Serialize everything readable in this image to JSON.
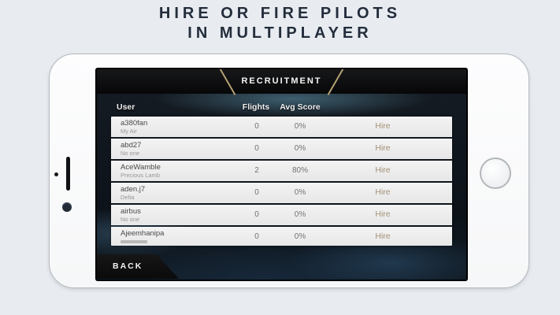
{
  "promo": {
    "title_line1": "HIRE OR FIRE PILOTS",
    "title_line2": "IN MULTIPLAYER",
    "title_color": "#232d3b",
    "background_color": "#e8ecf1"
  },
  "screen": {
    "header": {
      "title": "RECRUITMENT",
      "accent_color": "#b5a273"
    },
    "table": {
      "columns": [
        "User",
        "Flights",
        "Avg Score"
      ],
      "rows": [
        {
          "user": "a380fan",
          "sub": "My Air",
          "flights": "0",
          "avg": "0%",
          "action": "Hire"
        },
        {
          "user": "abd27",
          "sub": "No one",
          "flights": "0",
          "avg": "0%",
          "action": "Hire"
        },
        {
          "user": "AceWamble",
          "sub": "Precious Lamb",
          "flights": "2",
          "avg": "80%",
          "action": "Hire"
        },
        {
          "user": "aden.j7",
          "sub": "Delta",
          "flights": "0",
          "avg": "0%",
          "action": "Hire"
        },
        {
          "user": "airbus",
          "sub": "No one",
          "flights": "0",
          "avg": "0%",
          "action": "Hire"
        },
        {
          "user": "Ajeemhanipa",
          "sub": "",
          "flights": "0",
          "avg": "0%",
          "action": "Hire"
        }
      ],
      "hire_color": "#a39176"
    },
    "back_label": "BACK"
  }
}
